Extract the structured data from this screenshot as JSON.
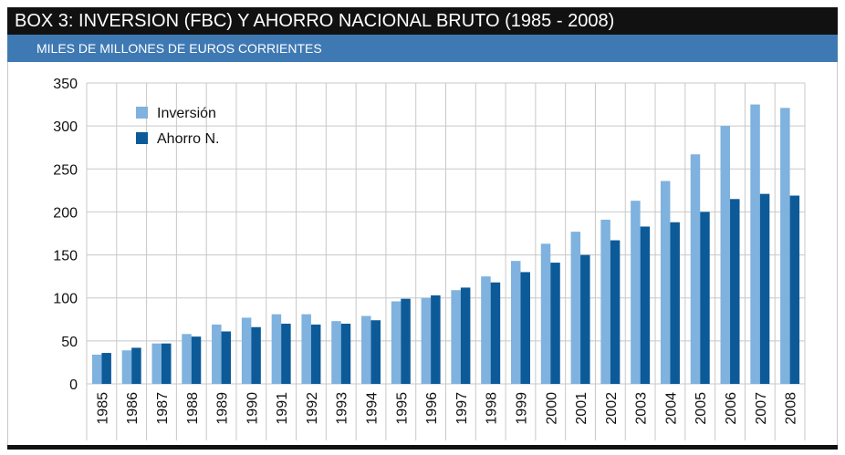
{
  "header": {
    "title": "BOX 3: INVERSION (FBC) Y  AHORRO NACIONAL BRUTO (1985 - 2008)",
    "subtitle": "MILES DE MILLONES DE EUROS CORRIENTES"
  },
  "colors": {
    "title_bg": "#111111",
    "subtitle_bg": "#3f79b3",
    "inversion": "#7fb2de",
    "ahorro": "#0d5a98",
    "grid": "#c8c8c8"
  },
  "chart_data": {
    "type": "bar",
    "title": "BOX 3: INVERSION (FBC) Y  AHORRO NACIONAL BRUTO (1985 - 2008)",
    "subtitle": "MILES DE MILLONES DE EUROS CORRIENTES",
    "xlabel": "",
    "ylabel": "",
    "ylim": [
      0,
      350
    ],
    "yticks": [
      0,
      50,
      100,
      150,
      200,
      250,
      300,
      350
    ],
    "grid": true,
    "legend_position": "top-left",
    "categories": [
      "1985",
      "1986",
      "1987",
      "1988",
      "1989",
      "1990",
      "1991",
      "1992",
      "1993",
      "1994",
      "1995",
      "1996",
      "1997",
      "1998",
      "1999",
      "2000",
      "2001",
      "2002",
      "2003",
      "2004",
      "2005",
      "2006",
      "2007",
      "2008"
    ],
    "series": [
      {
        "name": "Inversión",
        "color": "#7fb2de",
        "values": [
          34,
          39,
          47,
          58,
          69,
          77,
          81,
          81,
          73,
          79,
          96,
          100,
          109,
          125,
          143,
          163,
          177,
          191,
          213,
          236,
          267,
          300,
          325,
          321
        ]
      },
      {
        "name": "Ahorro N.",
        "color": "#0d5a98",
        "values": [
          36,
          42,
          47,
          55,
          61,
          66,
          70,
          69,
          70,
          74,
          99,
          103,
          112,
          118,
          130,
          141,
          150,
          167,
          183,
          188,
          200,
          215,
          221,
          219
        ]
      }
    ]
  }
}
